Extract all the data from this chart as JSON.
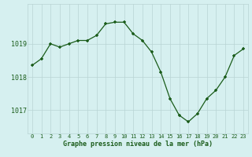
{
  "hours": [
    0,
    1,
    2,
    3,
    4,
    5,
    6,
    7,
    8,
    9,
    10,
    11,
    12,
    13,
    14,
    15,
    16,
    17,
    18,
    19,
    20,
    21,
    22,
    23
  ],
  "pressure": [
    1018.35,
    1018.55,
    1019.0,
    1018.9,
    1019.0,
    1019.1,
    1019.1,
    1019.25,
    1019.6,
    1019.65,
    1019.65,
    1019.3,
    1019.1,
    1018.75,
    1018.15,
    1017.35,
    1016.85,
    1016.65,
    1016.9,
    1017.35,
    1017.6,
    1018.0,
    1018.65,
    1018.85
  ],
  "line_color": "#1a5c1a",
  "marker": "+",
  "marker_size": 3,
  "bg_color": "#d6f0f0",
  "grid_color": "#b8d4d4",
  "xlabel": "Graphe pression niveau de la mer (hPa)",
  "yticks": [
    1017,
    1018,
    1019
  ],
  "ylim": [
    1016.3,
    1020.2
  ],
  "xlim": [
    -0.5,
    23.5
  ],
  "xticks": [
    0,
    1,
    2,
    3,
    4,
    5,
    6,
    7,
    8,
    9,
    10,
    11,
    12,
    13,
    14,
    15,
    16,
    17,
    18,
    19,
    20,
    21,
    22,
    23
  ]
}
